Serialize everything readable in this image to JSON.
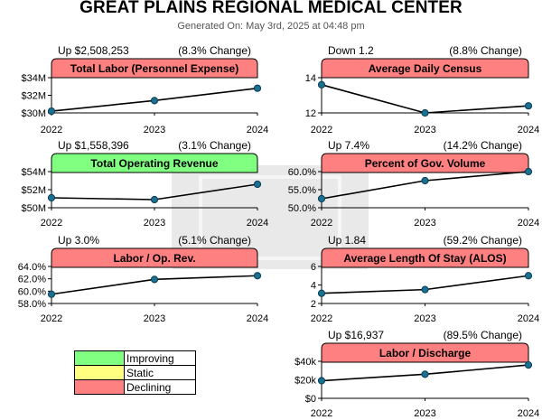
{
  "header": {
    "title": "GREAT PLAINS REGIONAL MEDICAL CENTER",
    "generated": "Generated On: May 3rd, 2025 at 04:48 pm"
  },
  "colors": {
    "improving": "#80ff80",
    "static": "#ffff80",
    "declining": "#ff8080",
    "point": "#1a7090"
  },
  "legend": [
    {
      "label": "Improving",
      "status": "improving"
    },
    {
      "label": "Static",
      "status": "static"
    },
    {
      "label": "Declining",
      "status": "declining"
    }
  ],
  "chart_data": [
    {
      "type": "line",
      "title": "Total Labor (Personnel Expense)",
      "status": "declining",
      "change_text": "Up $2,508,253",
      "pct_text": "(8.3% Change)",
      "categories": [
        "2022",
        "2023",
        "2024"
      ],
      "values": [
        30.2,
        31.4,
        32.8
      ],
      "ylim": [
        30,
        34
      ],
      "yticks": [
        30,
        32,
        34
      ],
      "ytick_labels": [
        "$30M",
        "$32M",
        "$34M"
      ]
    },
    {
      "type": "line",
      "title": "Average Daily Census",
      "status": "declining",
      "change_text": "Down 1.2",
      "pct_text": "(8.8% Change)",
      "categories": [
        "2022",
        "2023",
        "2024"
      ],
      "values": [
        13.6,
        12.0,
        12.4
      ],
      "ylim": [
        12,
        14
      ],
      "yticks": [
        12,
        14
      ],
      "ytick_labels": [
        "12",
        "14"
      ]
    },
    {
      "type": "line",
      "title": "Total Operating Revenue",
      "status": "improving",
      "change_text": "Up $1,558,396",
      "pct_text": "(3.1% Change)",
      "categories": [
        "2022",
        "2023",
        "2024"
      ],
      "values": [
        51.1,
        50.9,
        52.6
      ],
      "ylim": [
        50,
        54
      ],
      "yticks": [
        50,
        52,
        54
      ],
      "ytick_labels": [
        "$50M",
        "$52M",
        "$54M"
      ]
    },
    {
      "type": "line",
      "title": "Percent of Gov. Volume",
      "status": "declining",
      "change_text": "Up 7.4%",
      "pct_text": "(14.2% Change)",
      "categories": [
        "2022",
        "2023",
        "2024"
      ],
      "values": [
        52.5,
        57.5,
        60.0
      ],
      "ylim": [
        50,
        60
      ],
      "yticks": [
        50,
        55,
        60
      ],
      "ytick_labels": [
        "50.0%",
        "55.0%",
        "60.0%"
      ]
    },
    {
      "type": "line",
      "title": "Labor / Op. Rev.",
      "status": "declining",
      "change_text": "Up 3.0%",
      "pct_text": "(5.1% Change)",
      "categories": [
        "2022",
        "2023",
        "2024"
      ],
      "values": [
        59.5,
        61.9,
        62.5
      ],
      "ylim": [
        58,
        64
      ],
      "yticks": [
        58,
        60,
        62,
        64
      ],
      "ytick_labels": [
        "58.0%",
        "60.0%",
        "62.0%",
        "64.0%"
      ]
    },
    {
      "type": "line",
      "title": "Average Length Of Stay (ALOS)",
      "status": "declining",
      "change_text": "Up 1.84",
      "pct_text": "(59.2% Change)",
      "categories": [
        "2022",
        "2023",
        "2024"
      ],
      "values": [
        3.1,
        3.5,
        5.0
      ],
      "ylim": [
        2,
        6
      ],
      "yticks": [
        2,
        4,
        6
      ],
      "ytick_labels": [
        "2",
        "4",
        "6"
      ]
    },
    {
      "type": "line",
      "title": "Labor / Discharge",
      "status": "declining",
      "change_text": "Up $16,937",
      "pct_text": "(89.5% Change)",
      "categories": [
        "2022",
        "2023",
        "2024"
      ],
      "values": [
        19000,
        26000,
        36000
      ],
      "ylim": [
        0,
        40000
      ],
      "yticks": [
        0,
        20000,
        40000
      ],
      "ytick_labels": [
        "$0",
        "$20k",
        "$40k"
      ]
    }
  ]
}
